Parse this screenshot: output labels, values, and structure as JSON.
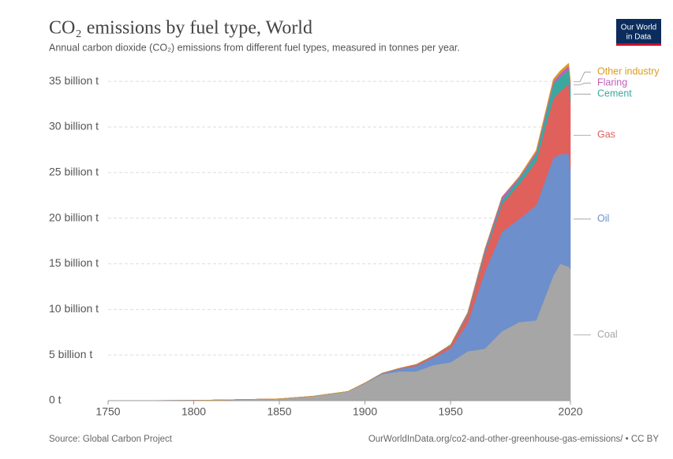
{
  "chart_data": {
    "type": "stacked_area",
    "title": "CO₂ emissions by fuel type, World",
    "subtitle": "Annual carbon dioxide (CO₂) emissions from different fuel types, measured in tonnes per year.",
    "source": "Source: Global Carbon Project",
    "url": "OurWorldInData.org/co2-and-other-greenhouse-gas-emissions/ • CC BY",
    "logo": [
      "Our World",
      "in Data"
    ],
    "x": [
      1750,
      1800,
      1850,
      1870,
      1890,
      1900,
      1910,
      1920,
      1930,
      1940,
      1950,
      1960,
      1970,
      1980,
      1990,
      2000,
      2010,
      2014,
      2019,
      2020
    ],
    "series": [
      {
        "name": "Coal",
        "color": "#a6a6a6",
        "values": [
          0.01,
          0.03,
          0.2,
          0.5,
          1.0,
          1.9,
          2.9,
          3.2,
          3.2,
          3.9,
          4.2,
          5.4,
          5.7,
          7.6,
          8.6,
          8.8,
          13.7,
          15.0,
          14.7,
          14.4
        ]
      },
      {
        "name": "Oil",
        "color": "#6d8fcb",
        "values": [
          0,
          0,
          0,
          0,
          0.01,
          0.04,
          0.1,
          0.3,
          0.6,
          0.8,
          1.5,
          3.1,
          8.4,
          10.9,
          11.3,
          12.6,
          12.9,
          12.0,
          12.4,
          11.0
        ]
      },
      {
        "name": "Gas",
        "color": "#e0605c",
        "values": [
          0,
          0,
          0,
          0,
          0,
          0.01,
          0.02,
          0.05,
          0.15,
          0.2,
          0.35,
          0.85,
          1.9,
          3.0,
          3.8,
          4.8,
          6.5,
          6.9,
          7.6,
          7.4
        ]
      },
      {
        "name": "Cement",
        "color": "#3ba8a0",
        "values": [
          0,
          0,
          0,
          0,
          0,
          0,
          0,
          0,
          0.03,
          0.04,
          0.07,
          0.16,
          0.3,
          0.44,
          0.57,
          0.8,
          1.6,
          1.6,
          1.6,
          1.6
        ]
      },
      {
        "name": "Flaring",
        "color": "#c05fbd",
        "values": [
          0,
          0,
          0,
          0,
          0,
          0,
          0,
          0,
          0,
          0,
          0.02,
          0.15,
          0.3,
          0.4,
          0.2,
          0.25,
          0.3,
          0.35,
          0.4,
          0.4
        ]
      },
      {
        "name": "Other industry",
        "color": "#dd9a1c",
        "values": [
          0,
          0,
          0,
          0,
          0,
          0,
          0,
          0,
          0,
          0,
          0,
          0,
          0,
          0,
          0.1,
          0.2,
          0.25,
          0.3,
          0.3,
          0.3
        ]
      }
    ],
    "xlim": [
      1750,
      2020
    ],
    "xticks": [
      1750,
      1800,
      1850,
      1900,
      1950,
      2020
    ],
    "ylim": [
      0,
      37
    ],
    "yticks": [
      {
        "value": 0,
        "label": "0 t"
      },
      {
        "value": 5,
        "label": "5 billion t"
      },
      {
        "value": 10,
        "label": "10 billion t"
      },
      {
        "value": 15,
        "label": "15 billion t"
      },
      {
        "value": 20,
        "label": "20 billion t"
      },
      {
        "value": 25,
        "label": "25 billion t"
      },
      {
        "value": 30,
        "label": "30 billion t"
      },
      {
        "value": 35,
        "label": "35 billion t"
      }
    ],
    "grid": true
  }
}
